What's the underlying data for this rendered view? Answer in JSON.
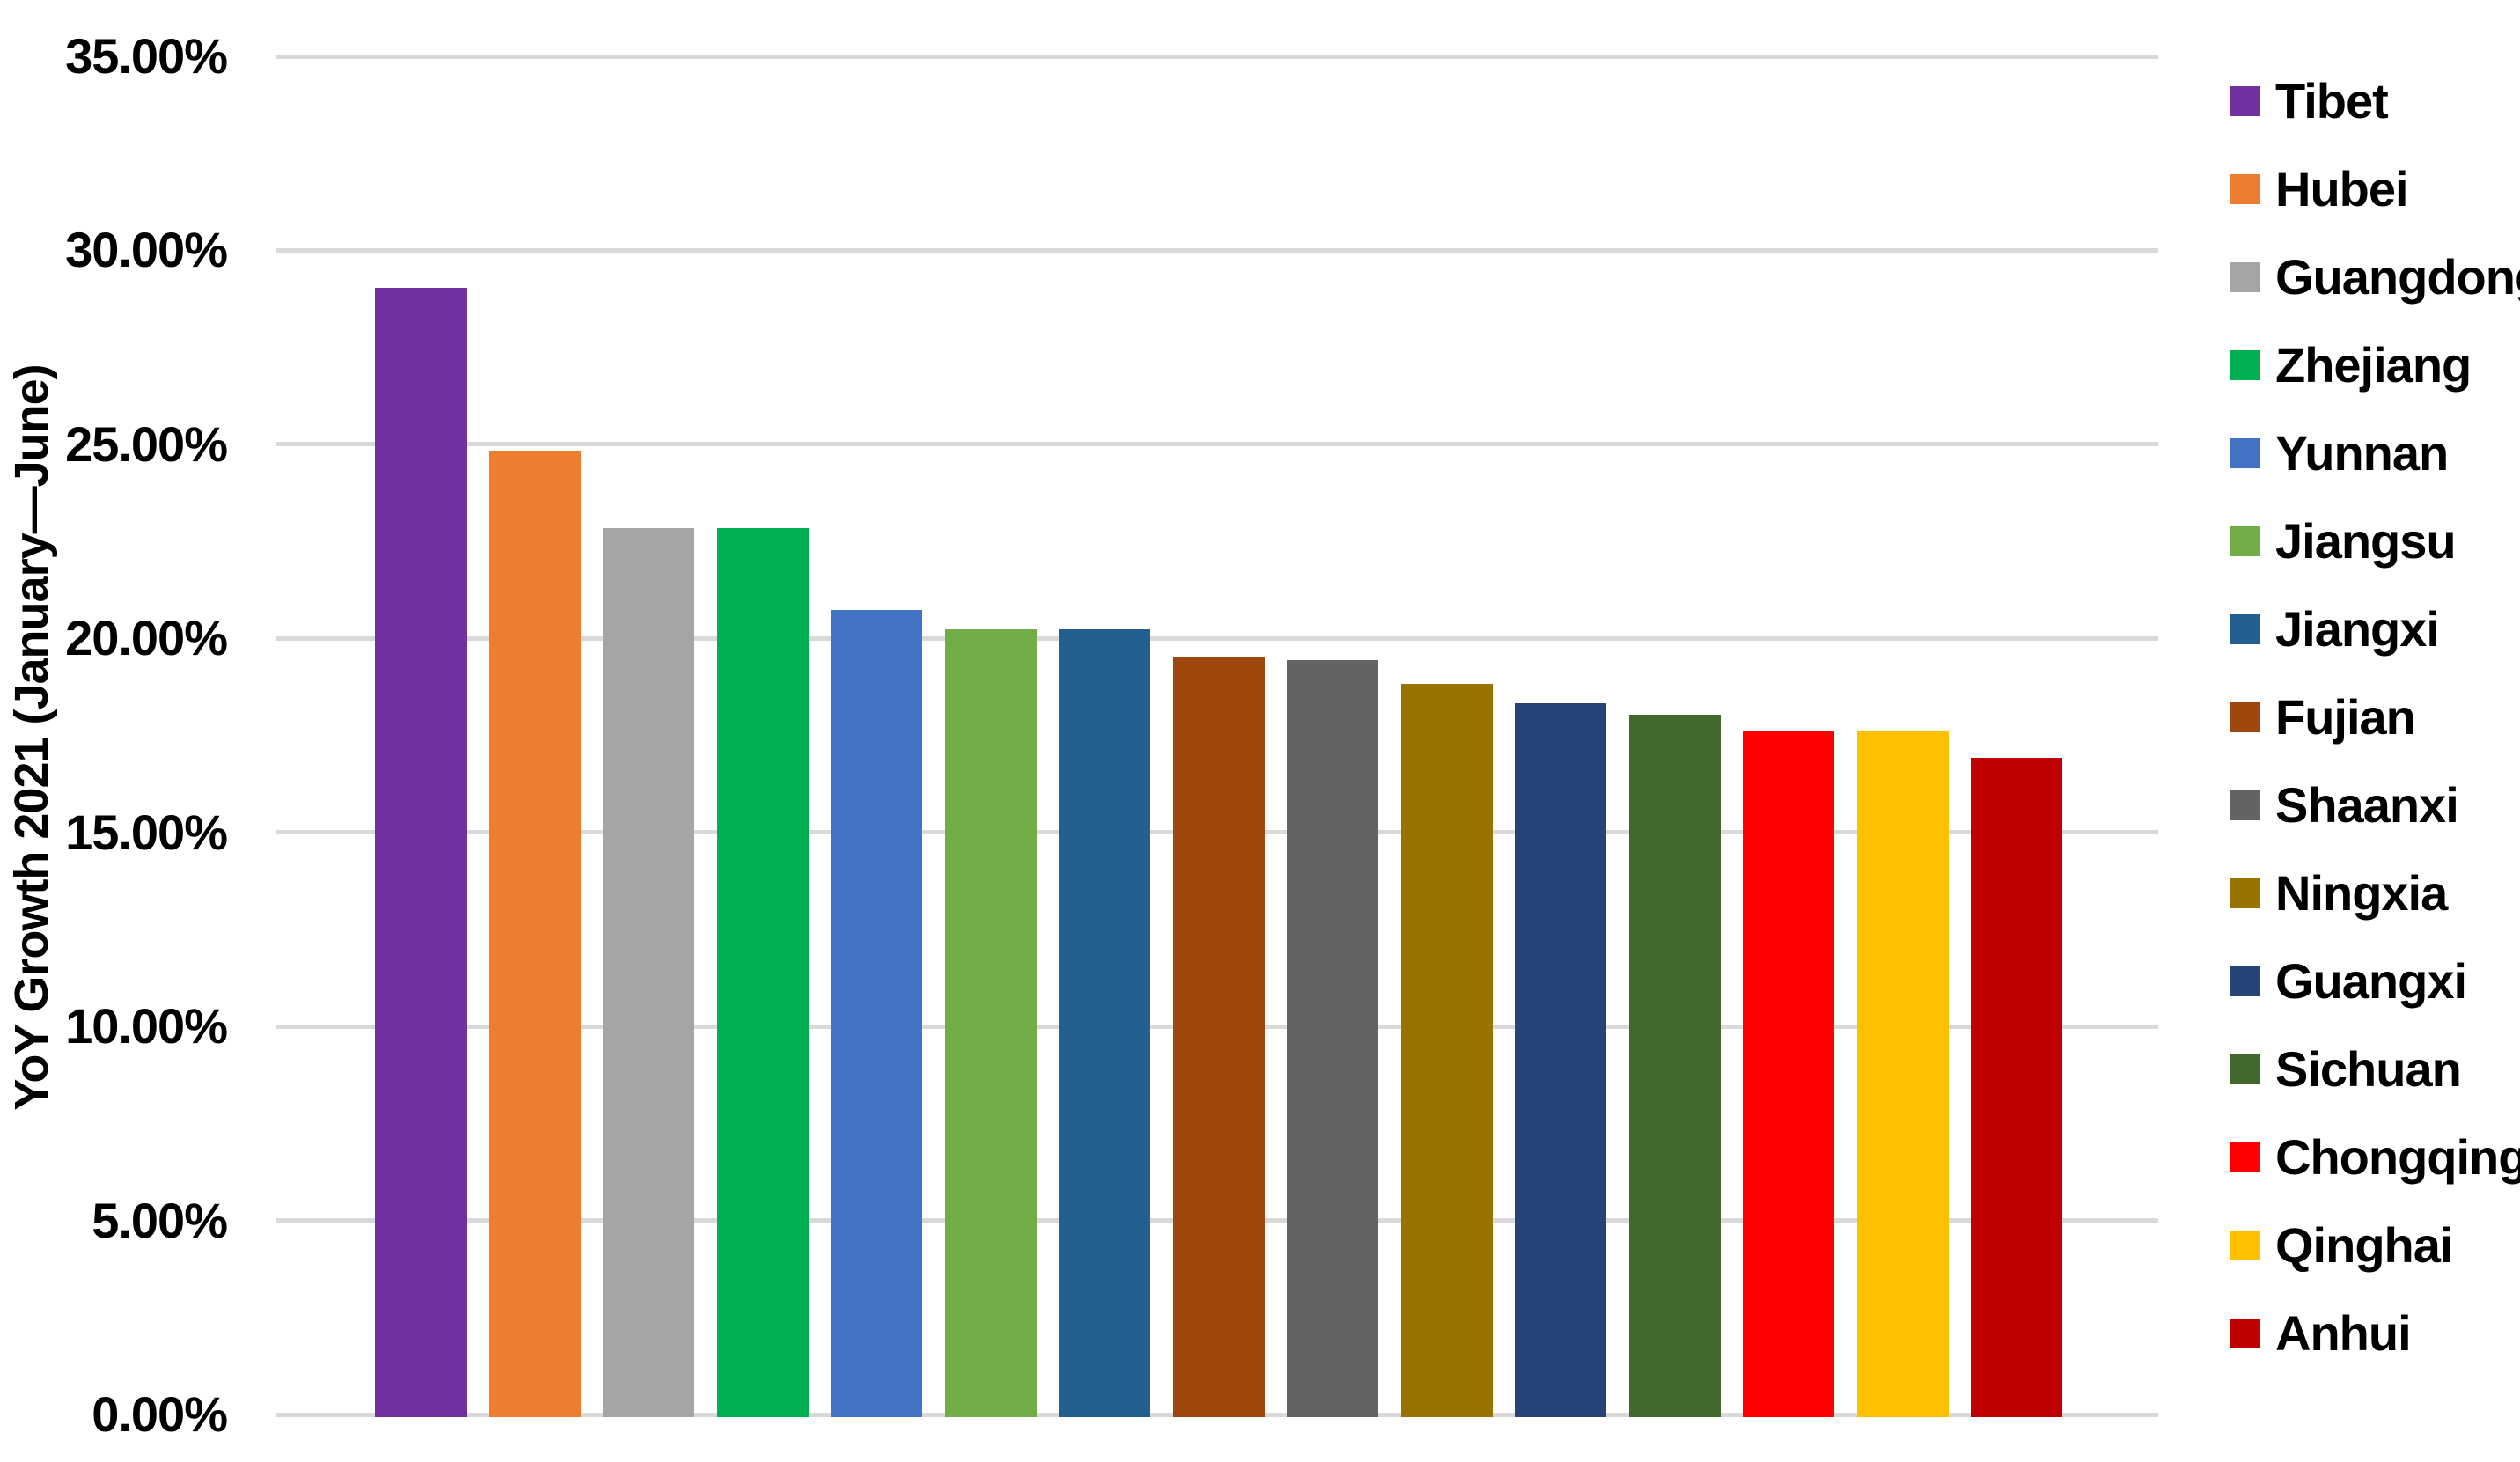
{
  "chart_data": {
    "type": "bar",
    "title": "",
    "xlabel": "",
    "ylabel": "YoY Growth 2021 (January—June)",
    "ylim": [
      0,
      35
    ],
    "ytick_step": 5,
    "ytick_labels": [
      "35.00%",
      "30.00%",
      "25.00%",
      "20.00%",
      "15.00%",
      "10.00%",
      "5.00%",
      "0.00%"
    ],
    "grid": "horizontal",
    "gridline_color": "#d9d9d9",
    "legend_position": "right",
    "unit": "%",
    "categories": [
      "Tibet",
      "Hubei",
      "Guangdong",
      "Zhejiang",
      "Yunnan",
      "Jiangsu",
      "Jiangxi",
      "Fujian",
      "Shaanxi",
      "Ningxia",
      "Guangxi",
      "Sichuan",
      "Chongqing",
      "Qinghai",
      "Anhui"
    ],
    "values": [
      29.1,
      24.9,
      22.9,
      22.9,
      20.8,
      20.3,
      20.3,
      19.6,
      19.5,
      18.9,
      18.4,
      18.1,
      17.7,
      17.7,
      17.0
    ],
    "colors": [
      "#7030A0",
      "#ED7D31",
      "#A5A5A5",
      "#00B050",
      "#4472C4",
      "#70AD47",
      "#255E91",
      "#9E480E",
      "#636363",
      "#997300",
      "#264478",
      "#43682B",
      "#FF0000",
      "#FFC000",
      "#C00000"
    ],
    "text_color": "#000000",
    "background_color": "#FFFFFF"
  }
}
